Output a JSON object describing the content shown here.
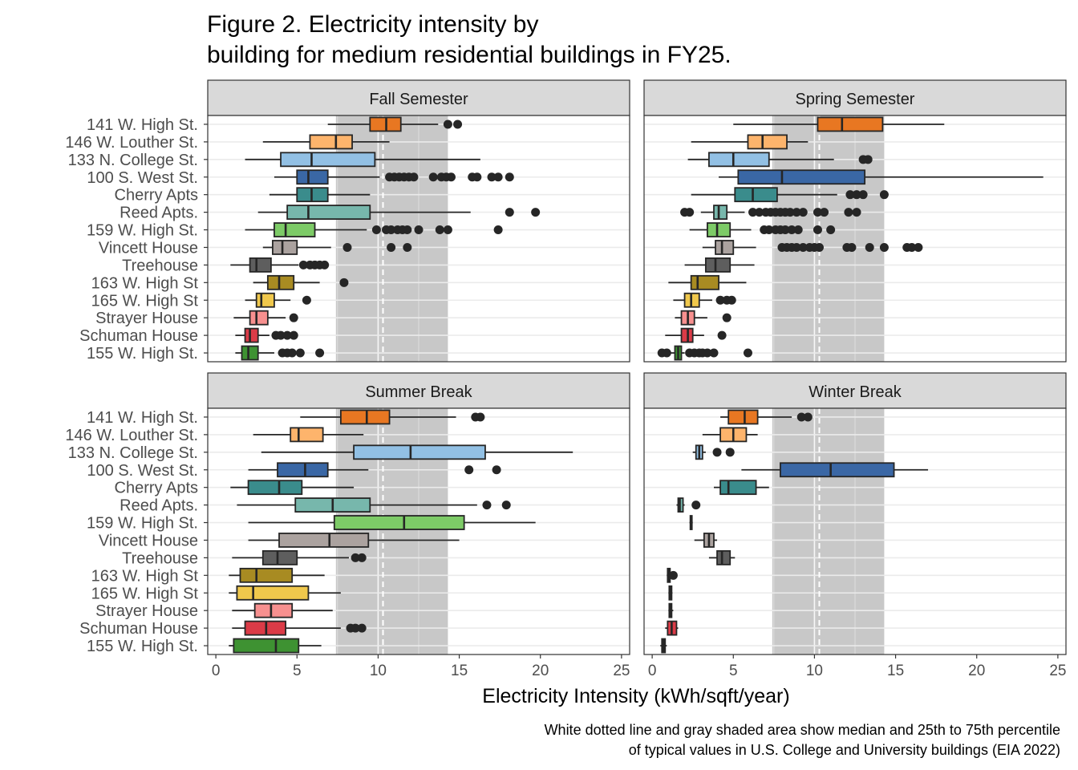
{
  "title_line1": "Figure 2. Electricity intensity by",
  "title_line2": "building for medium residential buildings in FY25.",
  "xlabel": "Electricity Intensity (kWh/sqft/year)",
  "caption_line1": "White dotted line and gray shaded area show median and 25th to 75th percentile",
  "caption_line2": "of typical values in U.S. College and University buildings (EIA 2022)",
  "chart_data": {
    "type": "boxplot",
    "facets": [
      "Fall Semester",
      "Spring Semester",
      "Summer Break",
      "Winter Break"
    ],
    "buildings": [
      "141 W. High St.",
      "146 W. Louther St.",
      "133 N. College St.",
      "100 S. West St.",
      "Cherry Apts",
      "Reed Apts.",
      "159 W. High St.",
      "Vincett House",
      "Treehouse",
      "163 W. High St",
      "165 W. High St",
      "Strayer House",
      "Schuman House",
      "155 W. High St."
    ],
    "colors": [
      "#e87722",
      "#fdb46c",
      "#92c0e4",
      "#3a67a5",
      "#3a8c8c",
      "#77b7ac",
      "#7dcb67",
      "#aba29f",
      "#5e5e5e",
      "#a88b22",
      "#f0c84c",
      "#f7908f",
      "#db3b47",
      "#3e9232"
    ],
    "xlim": [
      -0.5,
      25.5
    ],
    "x_ticks": [
      0,
      5,
      10,
      15,
      20,
      25
    ],
    "reference": {
      "median": 10.3,
      "p25": 7.4,
      "p75": 14.3
    },
    "panels": [
      {
        "facet": "Fall Semester",
        "boxes": [
          {
            "min": 6.9,
            "q1": 9.5,
            "med": 10.5,
            "q3": 11.4,
            "max": 13.7,
            "out": [
              14.3,
              14.9
            ]
          },
          {
            "min": 2.9,
            "q1": 5.8,
            "med": 7.4,
            "q3": 8.4,
            "max": 10.7,
            "out": []
          },
          {
            "min": 1.8,
            "q1": 4.0,
            "med": 5.9,
            "q3": 9.8,
            "max": 16.3,
            "out": []
          },
          {
            "min": 3.6,
            "q1": 5.0,
            "med": 5.7,
            "q3": 6.9,
            "max": 10.1,
            "out": [
              10.7,
              11.0,
              11.3,
              11.6,
              11.9,
              12.2,
              13.4,
              13.9,
              14.2,
              14.5,
              15.8,
              16.1,
              17.0,
              17.4,
              18.1
            ]
          },
          {
            "min": 3.3,
            "q1": 5.0,
            "med": 5.9,
            "q3": 6.9,
            "max": 9.5,
            "out": []
          },
          {
            "min": 2.6,
            "q1": 4.4,
            "med": 5.7,
            "q3": 9.5,
            "max": 15.7,
            "out": [
              18.1,
              19.7
            ]
          },
          {
            "min": 1.8,
            "q1": 3.6,
            "med": 4.3,
            "q3": 6.1,
            "max": 9.3,
            "out": [
              9.9,
              10.5,
              10.8,
              11.2,
              11.5,
              11.8,
              12.5,
              13.8,
              14.3,
              17.4
            ]
          },
          {
            "min": 2.9,
            "q1": 3.5,
            "med": 4.1,
            "q3": 5.0,
            "max": 7.1,
            "out": [
              8.1,
              10.8,
              11.8
            ]
          },
          {
            "min": 0.9,
            "q1": 2.1,
            "med": 2.5,
            "q3": 3.4,
            "max": 5.1,
            "out": [
              5.4,
              5.8,
              6.1,
              6.4,
              6.7
            ]
          },
          {
            "min": 2.3,
            "q1": 3.2,
            "med": 3.9,
            "q3": 4.8,
            "max": 6.4,
            "out": [
              7.9
            ]
          },
          {
            "min": 1.8,
            "q1": 2.5,
            "med": 2.8,
            "q3": 3.6,
            "max": 4.6,
            "out": [
              5.6
            ]
          },
          {
            "min": 1.1,
            "q1": 2.1,
            "med": 2.5,
            "q3": 3.2,
            "max": 4.3,
            "out": [
              4.8
            ]
          },
          {
            "min": 1.2,
            "q1": 1.8,
            "med": 2.1,
            "q3": 2.6,
            "max": 3.3,
            "out": [
              3.7,
              4.0,
              4.4,
              4.8
            ]
          },
          {
            "min": 1.2,
            "q1": 1.6,
            "med": 2.0,
            "q3": 2.6,
            "max": 3.6,
            "out": [
              4.1,
              4.4,
              4.7,
              5.2,
              6.4
            ]
          }
        ]
      },
      {
        "facet": "Spring Semester",
        "boxes": [
          {
            "min": 5.0,
            "q1": 10.2,
            "med": 11.7,
            "q3": 14.2,
            "max": 18.0,
            "out": []
          },
          {
            "min": 2.4,
            "q1": 5.9,
            "med": 6.8,
            "q3": 8.3,
            "max": 9.6,
            "out": []
          },
          {
            "min": 2.2,
            "q1": 3.5,
            "med": 5.0,
            "q3": 7.2,
            "max": 11.2,
            "out": [
              13.0,
              13.3
            ]
          },
          {
            "min": 4.1,
            "q1": 5.3,
            "med": 8.0,
            "q3": 13.1,
            "max": 24.1,
            "out": []
          },
          {
            "min": 2.4,
            "q1": 5.1,
            "med": 6.2,
            "q3": 7.7,
            "max": 11.4,
            "out": [
              12.2,
              12.6,
              13.0,
              14.3
            ]
          },
          {
            "min": 3.0,
            "q1": 3.8,
            "med": 4.1,
            "q3": 4.6,
            "max": 5.7,
            "out": [
              2.0,
              2.3,
              6.2,
              6.6,
              7.0,
              7.3,
              7.6,
              7.9,
              8.2,
              8.5,
              8.9,
              9.3,
              10.2,
              10.6,
              12.1,
              12.6
            ]
          },
          {
            "min": 2.3,
            "q1": 3.4,
            "med": 4.0,
            "q3": 4.8,
            "max": 6.1,
            "out": [
              6.9,
              7.2,
              7.6,
              7.9,
              8.2,
              8.6,
              9.0,
              10.2,
              11.0
            ]
          },
          {
            "min": 3.1,
            "q1": 3.9,
            "med": 4.3,
            "q3": 5.0,
            "max": 6.4,
            "out": [
              8.0,
              8.3,
              8.6,
              8.9,
              9.3,
              9.7,
              10.0,
              10.3,
              12.0,
              12.3,
              13.4,
              14.3,
              15.7,
              16.0,
              16.4
            ]
          },
          {
            "min": 2.0,
            "q1": 3.3,
            "med": 3.9,
            "q3": 4.8,
            "max": 6.3,
            "out": []
          },
          {
            "min": 1.0,
            "q1": 2.4,
            "med": 2.8,
            "q3": 4.1,
            "max": 5.8,
            "out": []
          },
          {
            "min": 1.3,
            "q1": 2.0,
            "med": 2.4,
            "q3": 2.9,
            "max": 3.7,
            "out": [
              4.2,
              4.6,
              4.9
            ]
          },
          {
            "min": 1.4,
            "q1": 1.8,
            "med": 2.2,
            "q3": 2.6,
            "max": 3.4,
            "out": [
              4.6
            ]
          },
          {
            "min": 0.8,
            "q1": 1.8,
            "med": 2.2,
            "q3": 2.5,
            "max": 3.2,
            "out": [
              4.3
            ]
          },
          {
            "min": 0.7,
            "q1": 1.4,
            "med": 1.6,
            "q3": 1.8,
            "max": 2.0,
            "out": [
              0.6,
              0.9,
              2.3,
              2.6,
              2.9,
              3.1,
              3.4,
              3.8,
              5.9
            ]
          }
        ]
      },
      {
        "facet": "Summer Break",
        "boxes": [
          {
            "min": 5.2,
            "q1": 7.7,
            "med": 9.3,
            "q3": 10.7,
            "max": 14.8,
            "out": [
              16.0,
              16.3
            ]
          },
          {
            "min": 2.3,
            "q1": 4.6,
            "med": 5.1,
            "q3": 6.6,
            "max": 9.1,
            "out": []
          },
          {
            "min": 2.8,
            "q1": 8.5,
            "med": 12.0,
            "q3": 16.6,
            "max": 22.0,
            "out": []
          },
          {
            "min": 2.0,
            "q1": 3.8,
            "med": 5.5,
            "q3": 6.9,
            "max": 9.4,
            "out": [
              15.6,
              17.3
            ]
          },
          {
            "min": 0.9,
            "q1": 2.0,
            "med": 3.9,
            "q3": 5.3,
            "max": 8.5,
            "out": []
          },
          {
            "min": 1.3,
            "q1": 4.9,
            "med": 7.2,
            "q3": 9.5,
            "max": 16.1,
            "out": [
              16.7,
              17.9
            ]
          },
          {
            "min": 2.0,
            "q1": 7.3,
            "med": 11.6,
            "q3": 15.3,
            "max": 19.7,
            "out": []
          },
          {
            "min": 2.0,
            "q1": 3.9,
            "med": 7.0,
            "q3": 9.4,
            "max": 15.0,
            "out": []
          },
          {
            "min": 1.0,
            "q1": 2.9,
            "med": 3.8,
            "q3": 5.0,
            "max": 8.2,
            "out": [
              8.6,
              9.0
            ]
          },
          {
            "min": 0.8,
            "q1": 1.5,
            "med": 2.5,
            "q3": 4.7,
            "max": 6.7,
            "out": []
          },
          {
            "min": 0.8,
            "q1": 1.3,
            "med": 2.3,
            "q3": 5.7,
            "max": 7.7,
            "out": []
          },
          {
            "min": 1.0,
            "q1": 2.4,
            "med": 3.4,
            "q3": 4.7,
            "max": 7.2,
            "out": []
          },
          {
            "min": 1.0,
            "q1": 1.8,
            "med": 3.1,
            "q3": 4.3,
            "max": 7.7,
            "out": [
              8.3,
              8.6,
              9.0
            ]
          },
          {
            "min": 0.8,
            "q1": 1.1,
            "med": 3.7,
            "q3": 5.1,
            "max": 6.5,
            "out": []
          }
        ]
      },
      {
        "facet": "Winter Break",
        "boxes": [
          {
            "min": 4.2,
            "q1": 4.7,
            "med": 5.7,
            "q3": 6.5,
            "max": 8.6,
            "out": [
              9.2,
              9.6
            ]
          },
          {
            "min": 3.1,
            "q1": 4.2,
            "med": 5.0,
            "q3": 5.8,
            "max": 6.5,
            "out": []
          },
          {
            "min": 2.5,
            "q1": 2.7,
            "med": 2.9,
            "q3": 3.1,
            "max": 3.3,
            "out": [
              4.0,
              4.8
            ]
          },
          {
            "min": 5.5,
            "q1": 7.9,
            "med": 11.0,
            "q3": 14.9,
            "max": 17.0,
            "out": []
          },
          {
            "min": 3.8,
            "q1": 4.2,
            "med": 4.7,
            "q3": 6.4,
            "max": 7.2,
            "out": []
          },
          {
            "min": 1.5,
            "q1": 1.6,
            "med": 1.7,
            "q3": 1.9,
            "max": 2.0,
            "out": [
              2.7
            ]
          },
          {
            "min": 2.3,
            "q1": 2.35,
            "med": 2.4,
            "q3": 2.45,
            "max": 2.5,
            "out": []
          },
          {
            "min": 2.6,
            "q1": 3.2,
            "med": 3.5,
            "q3": 3.8,
            "max": 4.0,
            "out": []
          },
          {
            "min": 3.5,
            "q1": 4.0,
            "med": 4.3,
            "q3": 4.8,
            "max": 5.1,
            "out": []
          },
          {
            "min": 0.9,
            "q1": 0.95,
            "med": 1.0,
            "q3": 1.1,
            "max": 1.2,
            "out": [
              1.3
            ]
          },
          {
            "min": 1.0,
            "q1": 1.05,
            "med": 1.1,
            "q3": 1.2,
            "max": 1.25,
            "out": []
          },
          {
            "min": 1.0,
            "q1": 1.05,
            "med": 1.1,
            "q3": 1.2,
            "max": 1.3,
            "out": []
          },
          {
            "min": 0.8,
            "q1": 0.95,
            "med": 1.2,
            "q3": 1.5,
            "max": 1.6,
            "out": []
          },
          {
            "min": 0.5,
            "q1": 0.6,
            "med": 0.7,
            "q3": 0.8,
            "max": 0.9,
            "out": []
          }
        ]
      }
    ]
  }
}
